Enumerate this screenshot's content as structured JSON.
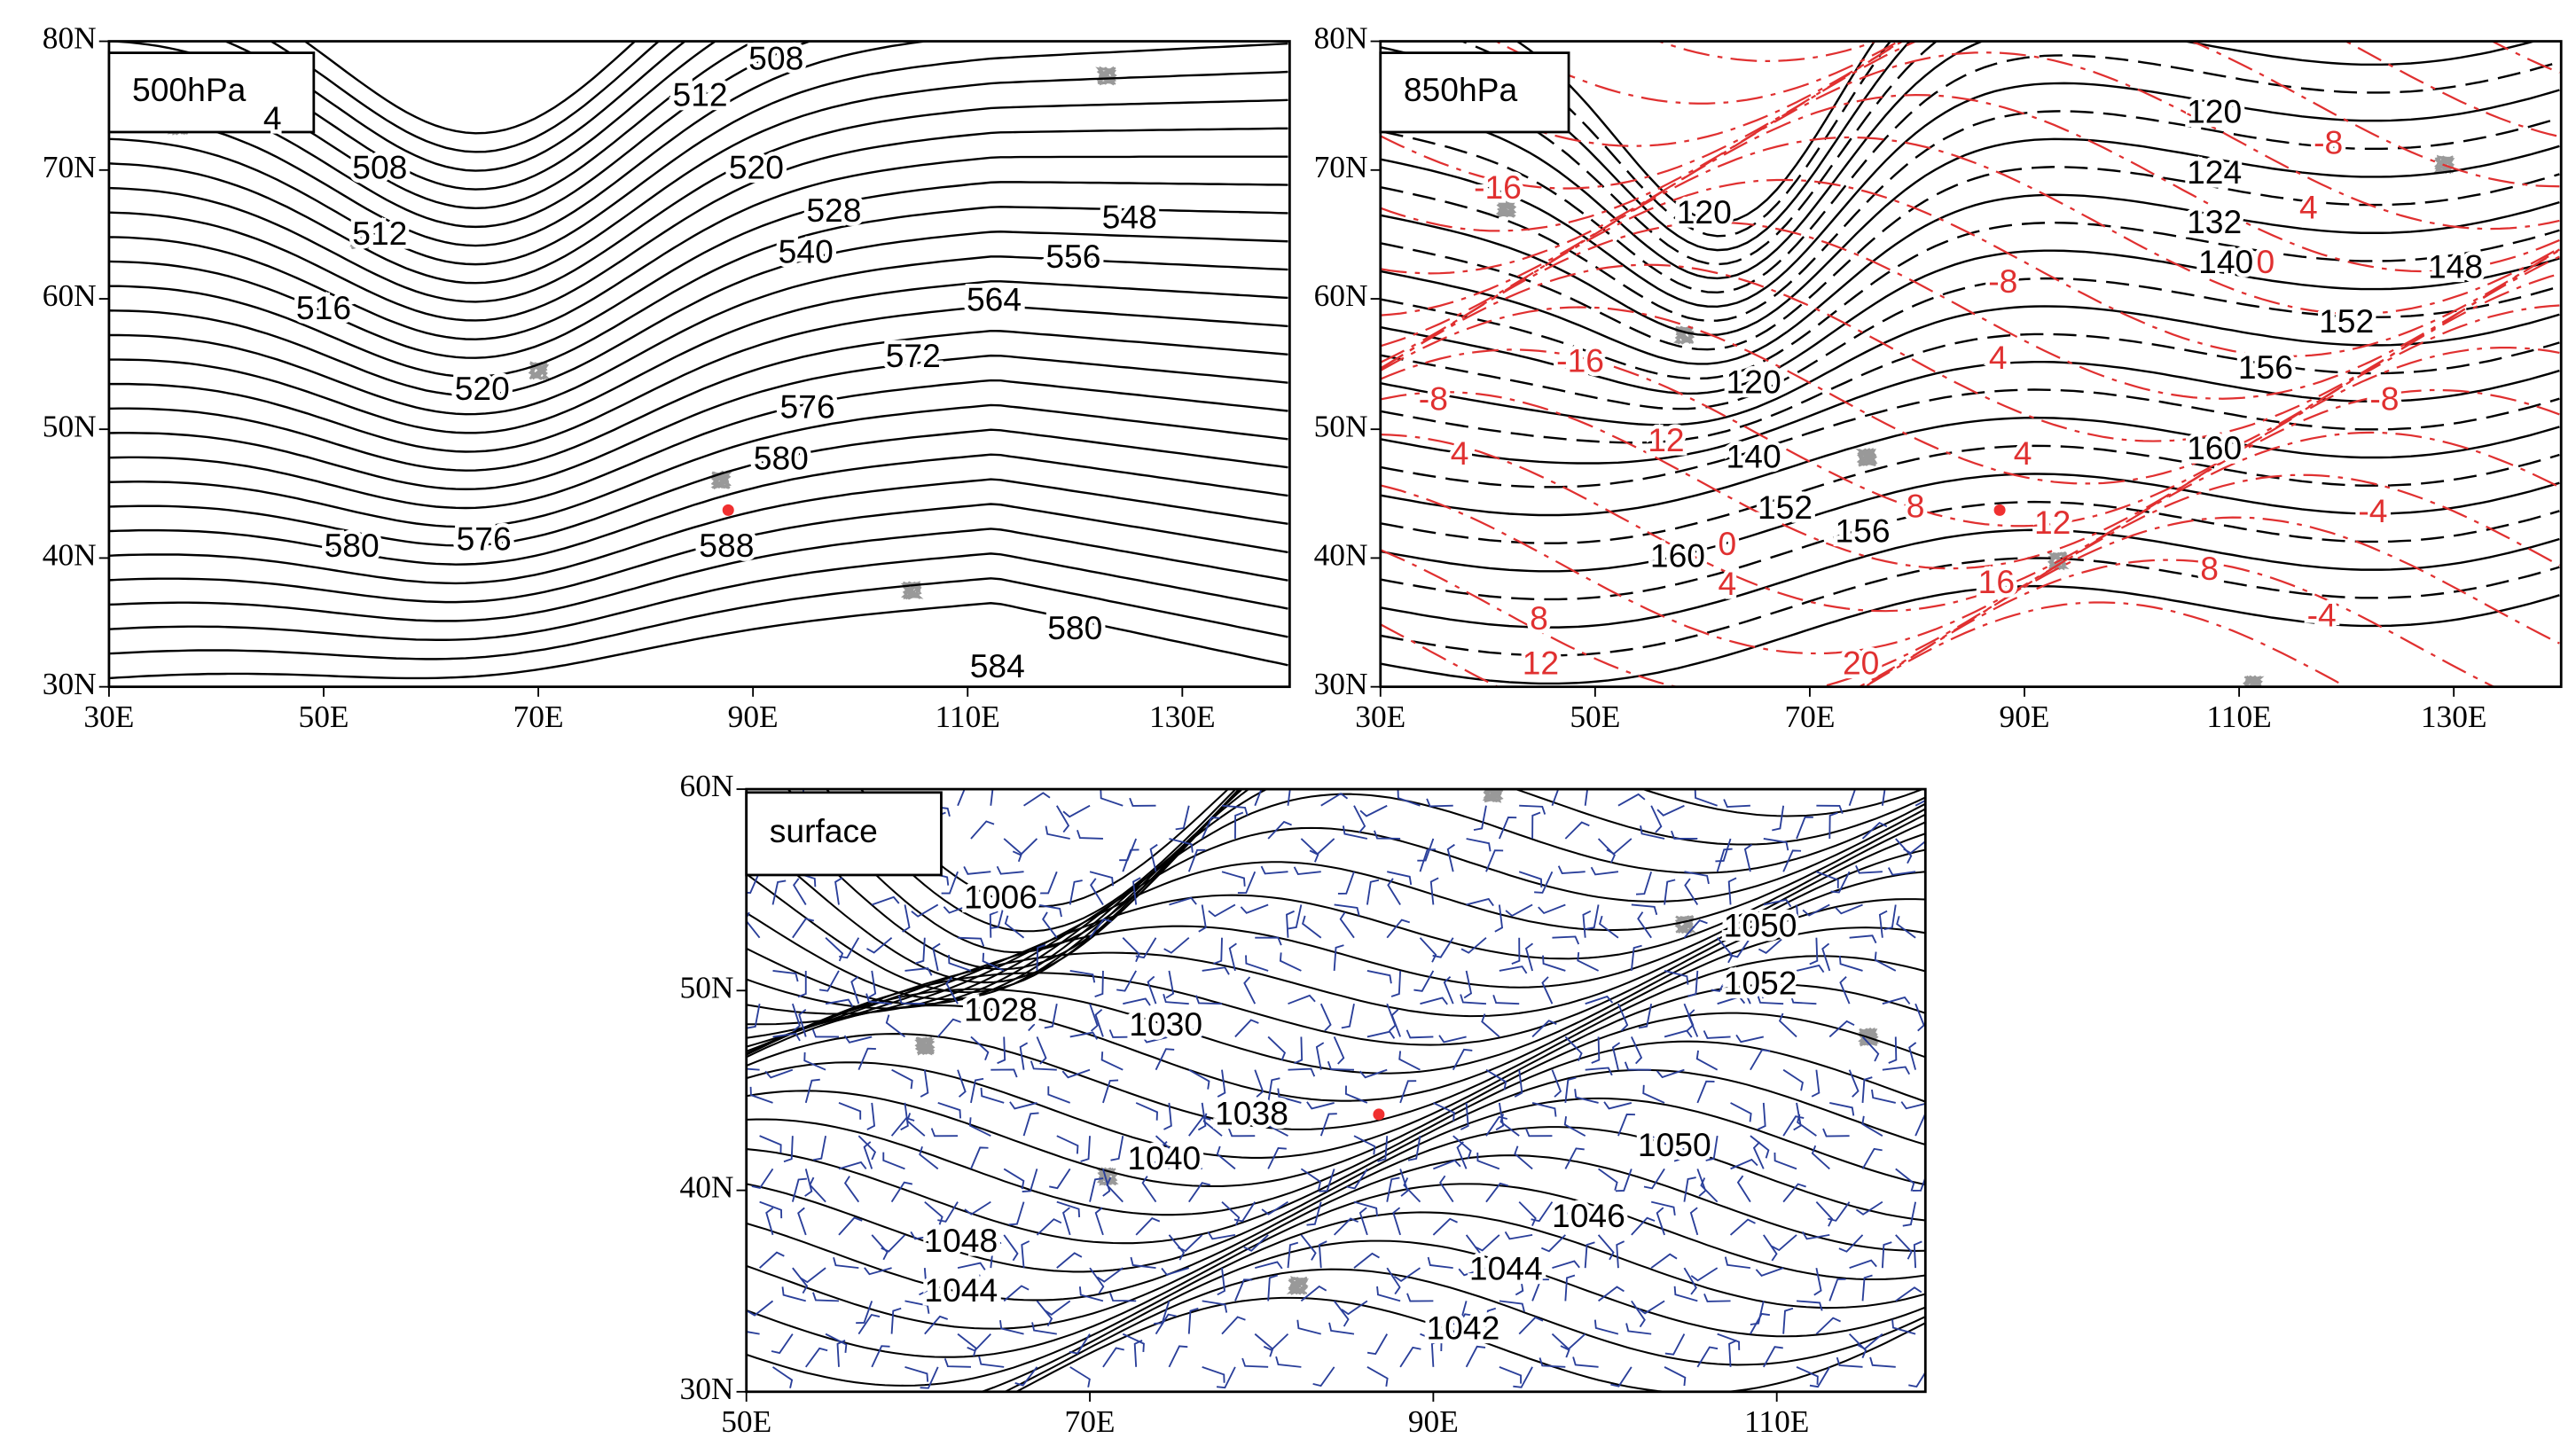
{
  "panels": [
    {
      "title": "500hPa",
      "lat_labels": [
        "80N",
        "70N",
        "60N",
        "50N",
        "40N",
        "30N"
      ],
      "lon_labels": [
        "30E",
        "50E",
        "70E",
        "90E",
        "110E",
        "130E"
      ],
      "contour_labels": [
        "4",
        "508",
        "512",
        "516",
        "520",
        "580",
        "576",
        "588",
        "508",
        "512",
        "520",
        "528",
        "540",
        "548",
        "556",
        "564",
        "572",
        "576",
        "580",
        "580",
        "584"
      ]
    },
    {
      "title": "850hPa",
      "lat_labels": [
        "80N",
        "70N",
        "60N",
        "50N",
        "40N",
        "30N"
      ],
      "lon_labels": [
        "30E",
        "50E",
        "70E",
        "90E",
        "110E",
        "130E"
      ],
      "height_labels": [
        "120",
        "124",
        "132",
        "140",
        "148",
        "152",
        "156",
        "160",
        "120",
        "120",
        "140",
        "152",
        "156",
        "160"
      ],
      "temperature_labels": [
        "-16",
        "-8",
        "4",
        "0",
        "-8",
        "-16",
        "4",
        "-8",
        "-8",
        "4",
        "12",
        "4",
        "8",
        "12",
        "-4",
        "0",
        "4",
        "16",
        "8",
        "8",
        "-4",
        "12",
        "20"
      ]
    },
    {
      "title": "surface",
      "lat_labels": [
        "60N",
        "50N",
        "40N",
        "30N"
      ],
      "lon_labels": [
        "50E",
        "70E",
        "90E",
        "110E"
      ],
      "pressure_labels": [
        "1006",
        "1028",
        "1030",
        "1038",
        "1040",
        "1048",
        "1044",
        "1050",
        "1052",
        "1050",
        "1046",
        "1044",
        "1042"
      ]
    }
  ]
}
